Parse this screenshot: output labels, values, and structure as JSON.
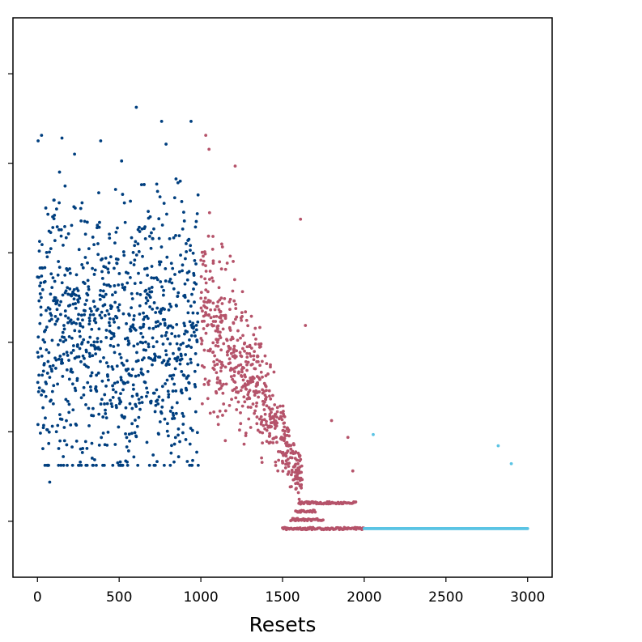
{
  "chart_data": {
    "type": "scatter",
    "title": "",
    "xlabel": "Resets",
    "ylabel": "",
    "xlim": [
      -150,
      3150
    ],
    "ylim": [
      0,
      1
    ],
    "x_ticks": [
      0,
      500,
      1000,
      1500,
      2000,
      2500,
      3000
    ],
    "x_tick_labels": [
      "0",
      "500",
      "1000",
      "1500",
      "2000",
      "2500",
      "3000"
    ],
    "y_ticks": [
      0.1,
      0.26,
      0.42,
      0.58,
      0.74,
      0.9
    ],
    "y_tick_labels": [
      "",
      "",
      "",
      "",
      "",
      ""
    ],
    "grid": false,
    "legend": "none",
    "series": [
      {
        "color": "#003f7f",
        "x_range": [
          0,
          1000
        ],
        "count": 1000,
        "description_values": {
          "y_center": 0.43,
          "y_min": 0.17,
          "y_max": 0.84,
          "notable_points": [
            {
              "x": 605,
              "y": 0.84
            },
            {
              "x": 760,
              "y": 0.815
            },
            {
              "x": 940,
              "y": 0.815
            },
            {
              "x": 25,
              "y": 0.79
            },
            {
              "x": 150,
              "y": 0.785
            },
            {
              "x": 75,
              "y": 0.17
            },
            {
              "x": 350,
              "y": 0.21
            },
            {
              "x": 590,
              "y": 0.215
            }
          ]
        }
      },
      {
        "color": "#b5536a",
        "x_range": [
          1000,
          2000
        ],
        "count": 1000,
        "description_values": {
          "plateau_levels": [
            0.087,
            0.103,
            0.118,
            0.133
          ],
          "plateau_ranges": [
            [
              1500,
              2000
            ],
            [
              1550,
              1750
            ],
            [
              1580,
              1700
            ],
            [
              1600,
              1950
            ]
          ],
          "notable_points": [
            {
              "x": 1030,
              "y": 0.79
            },
            {
              "x": 1050,
              "y": 0.765
            },
            {
              "x": 1210,
              "y": 0.735
            },
            {
              "x": 1610,
              "y": 0.64
            },
            {
              "x": 1640,
              "y": 0.45
            },
            {
              "x": 1800,
              "y": 0.28
            },
            {
              "x": 1900,
              "y": 0.25
            },
            {
              "x": 1930,
              "y": 0.19
            }
          ]
        }
      },
      {
        "color": "#5bc4e4",
        "x_range": [
          2000,
          3000
        ],
        "count": 1000,
        "description_values": {
          "plateau_level": 0.087,
          "notable_points": [
            {
              "x": 2055,
              "y": 0.255
            },
            {
              "x": 2820,
              "y": 0.235
            },
            {
              "x": 2900,
              "y": 0.203
            }
          ]
        }
      }
    ]
  }
}
